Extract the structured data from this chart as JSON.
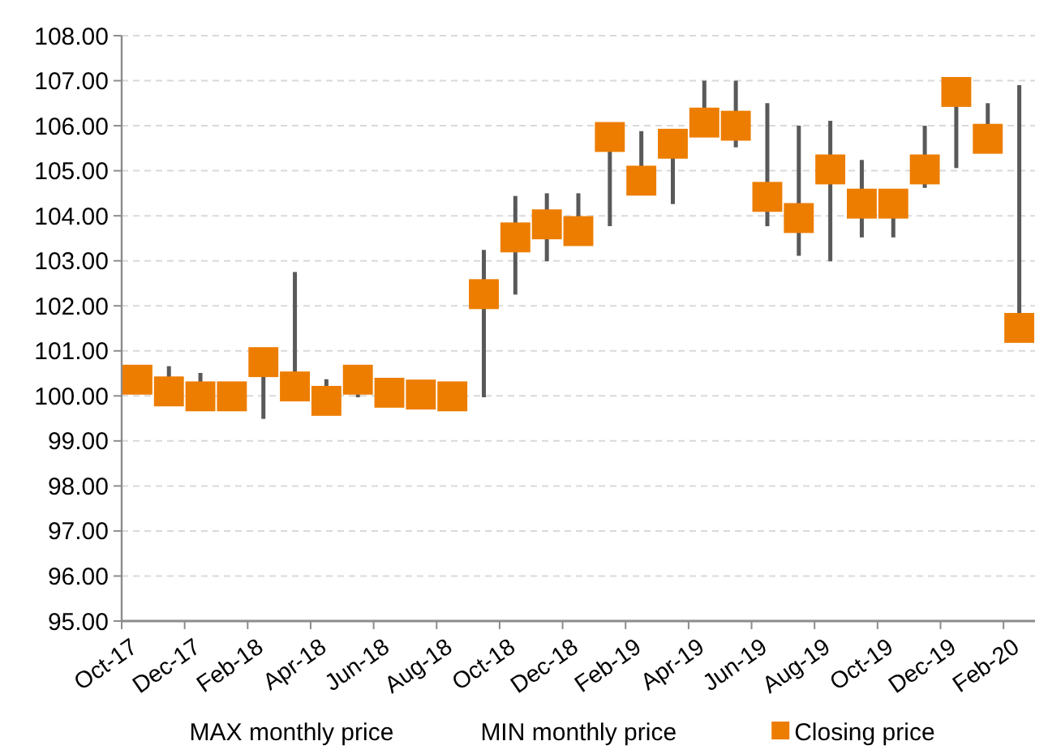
{
  "chart_data": {
    "type": "scatter",
    "categories": [
      "Oct-17",
      null,
      "Dec-17",
      null,
      "Feb-18",
      null,
      "Apr-18",
      null,
      "Jun-18",
      null,
      "Aug-18",
      null,
      "Oct-18",
      null,
      "Dec-18",
      null,
      "Feb-19",
      null,
      "Apr-19",
      null,
      "Jun-19",
      null,
      "Aug-19",
      null,
      "Oct-19",
      null,
      "Dec-19",
      null,
      "Feb-20"
    ],
    "series": [
      {
        "name": "Closing price",
        "color": "#ed7d00",
        "marker": "square",
        "values": [
          100.36,
          100.1,
          99.99,
          99.99,
          100.75,
          100.21,
          99.89,
          100.36,
          100.07,
          100.03,
          99.99,
          102.26,
          103.52,
          103.81,
          103.66,
          105.75,
          104.78,
          105.6,
          106.07,
          106.0,
          104.42,
          103.95,
          105.03,
          104.27,
          104.27,
          105.03,
          106.75,
          105.71,
          101.51
        ],
        "errors": [
          null,
          [
            100.1,
            100.66
          ],
          [
            99.99,
            100.51
          ],
          null,
          [
            99.49,
            100.75
          ],
          [
            100.21,
            102.75
          ],
          [
            99.89,
            100.37
          ],
          [
            99.97,
            100.36
          ],
          null,
          null,
          null,
          [
            99.97,
            103.24
          ],
          [
            102.25,
            104.44
          ],
          [
            102.99,
            104.5
          ],
          [
            103.66,
            104.5
          ],
          [
            103.77,
            105.75
          ],
          [
            104.78,
            105.88
          ],
          [
            104.26,
            105.6
          ],
          [
            106.07,
            107.0
          ],
          [
            105.52,
            107.0
          ],
          [
            103.77,
            106.5
          ],
          [
            103.11,
            106.0
          ],
          [
            102.99,
            106.11
          ],
          [
            103.52,
            105.24
          ],
          [
            103.52,
            104.27
          ],
          [
            104.62,
            106.0
          ],
          [
            105.06,
            106.75
          ],
          [
            105.71,
            106.5
          ],
          [
            101.51,
            106.9
          ]
        ]
      }
    ],
    "annotations": [
      "MAX monthly price",
      "MIN monthly price"
    ],
    "ylim": [
      95,
      108
    ],
    "yticks": [
      {
        "value": 95,
        "label": "95.00"
      },
      {
        "value": 96,
        "label": "96.00"
      },
      {
        "value": 97,
        "label": "97.00"
      },
      {
        "value": 98,
        "label": "98.00"
      },
      {
        "value": 99,
        "label": "99.00"
      },
      {
        "value": 100,
        "label": "100.00"
      },
      {
        "value": 101,
        "label": "101.00"
      },
      {
        "value": 102,
        "label": "102.00"
      },
      {
        "value": 103,
        "label": "103.00"
      },
      {
        "value": 104,
        "label": "104.00"
      },
      {
        "value": 105,
        "label": "105.00"
      },
      {
        "value": 106,
        "label": "106.00"
      },
      {
        "value": 107,
        "label": "107.00"
      },
      {
        "value": 108,
        "label": "108.00"
      }
    ],
    "grid": "y",
    "legend": "bottom"
  }
}
